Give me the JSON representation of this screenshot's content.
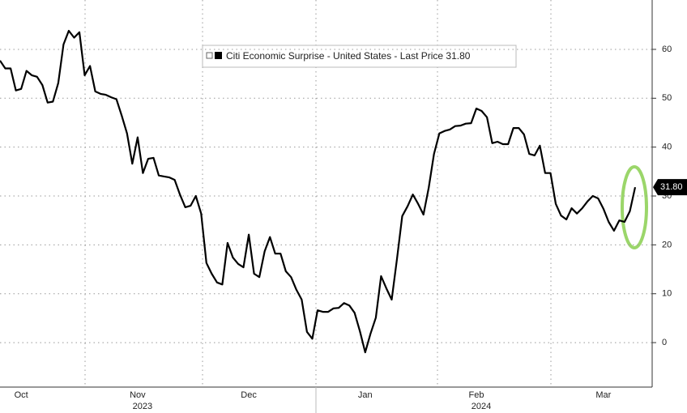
{
  "chart_data": {
    "type": "line",
    "legend_label": "Citi Economic Surprise - United States - Last Price 31.80",
    "last_value_label": "31.80",
    "year_labels": [
      "2023",
      "2024"
    ],
    "categories": [
      null,
      null,
      null,
      null,
      "Oct",
      null,
      null,
      null,
      null,
      null,
      null,
      null,
      null,
      null,
      null,
      null,
      null,
      null,
      null,
      null,
      null,
      null,
      null,
      null,
      null,
      null,
      "Nov",
      null,
      null,
      null,
      null,
      null,
      null,
      null,
      null,
      null,
      null,
      null,
      null,
      null,
      null,
      null,
      null,
      null,
      null,
      null,
      null,
      "Dec",
      null,
      null,
      null,
      null,
      null,
      null,
      null,
      null,
      null,
      null,
      null,
      null,
      null,
      null,
      null,
      null,
      null,
      null,
      null,
      null,
      null,
      "Jan",
      null,
      null,
      null,
      null,
      null,
      null,
      null,
      null,
      null,
      null,
      null,
      null,
      null,
      null,
      null,
      null,
      null,
      null,
      null,
      null,
      "Feb",
      null,
      null,
      null,
      null,
      null,
      null,
      null,
      null,
      null,
      null,
      null,
      null,
      null,
      null,
      null,
      null,
      null,
      null,
      null,
      null,
      null,
      null,
      null,
      "Mar",
      null,
      null,
      null,
      null,
      null,
      null
    ],
    "series": [
      {
        "name": "Citi Economic Surprise - United States",
        "color": "#000000",
        "values": [
          57.7,
          56.1,
          56.1,
          51.6,
          51.9,
          55.6,
          54.7,
          54.4,
          52.7,
          49.1,
          49.3,
          53.1,
          61.0,
          63.8,
          62.4,
          63.5,
          54.7,
          56.6,
          51.4,
          50.9,
          50.7,
          50.2,
          49.8,
          46.4,
          42.8,
          36.6,
          42.0,
          34.7,
          37.6,
          37.8,
          34.2,
          34.0,
          33.8,
          33.3,
          30.3,
          27.7,
          28.0,
          30.0,
          26.4,
          16.3,
          14.1,
          12.3,
          11.9,
          20.4,
          17.4,
          16.1,
          15.4,
          22.1,
          14.1,
          13.4,
          18.7,
          21.6,
          18.2,
          18.2,
          14.6,
          13.4,
          10.8,
          8.8,
          2.2,
          0.8,
          6.6,
          6.3,
          6.3,
          7.0,
          7.1,
          8.1,
          7.6,
          6.1,
          2.3,
          -2.0,
          1.8,
          5.1,
          13.6,
          11.1,
          8.8,
          17.1,
          25.9,
          27.9,
          30.3,
          28.4,
          26.2,
          31.7,
          38.6,
          42.8,
          43.3,
          43.6,
          44.3,
          44.4,
          44.8,
          44.9,
          47.9,
          47.4,
          46.1,
          40.8,
          41.1,
          40.6,
          40.6,
          43.9,
          43.9,
          42.6,
          38.6,
          38.3,
          40.3,
          34.7,
          34.7,
          28.4,
          26.0,
          25.2,
          27.5,
          26.4,
          27.5,
          28.9,
          30.0,
          29.5,
          27.4,
          24.7,
          22.9,
          25.0,
          24.7,
          26.9,
          31.8
        ]
      }
    ],
    "ylim": [
      -9.1,
      70.1
    ],
    "yticks": [
      0,
      10,
      20,
      30,
      40,
      50,
      60
    ],
    "grid": true
  }
}
